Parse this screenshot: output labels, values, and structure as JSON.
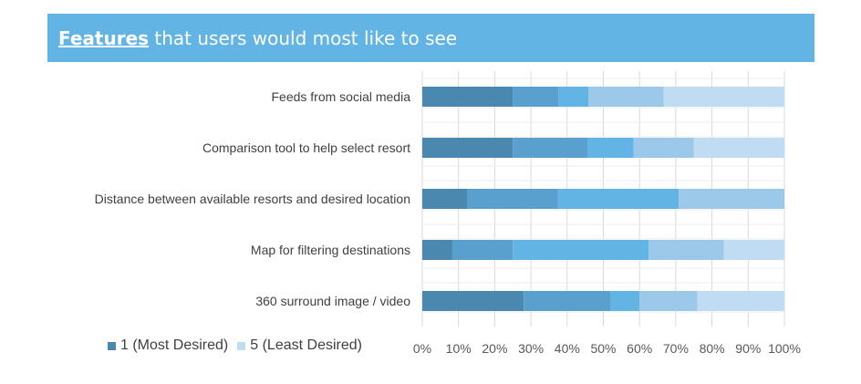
{
  "header": {
    "title_emphasis": "Features",
    "title_rest": " that users would most like to see"
  },
  "legend": [
    {
      "label": "1 (Most Desired)",
      "color": "#4a88b0"
    },
    {
      "label": "5 (Least Desired)",
      "color": "#c0dcf2"
    }
  ],
  "chart_data": {
    "type": "bar",
    "orientation": "horizontal",
    "stacked": "percent",
    "categories": [
      "Feeds from social media",
      "Comparison tool to help select resort",
      "Distance between available resorts and desired location",
      "Map for filtering destinations",
      "360 surround image / video "
    ],
    "series": [
      {
        "name": "1 (Most Desired)",
        "color": "#4a88b0",
        "values": [
          25,
          25,
          12.5,
          8.3,
          28
        ]
      },
      {
        "color": "#5aa0ce",
        "values": [
          12.5,
          20.8,
          25,
          16.7,
          24
        ]
      },
      {
        "color": "#62b4e5",
        "values": [
          8.3,
          12.5,
          33.3,
          37.5,
          8
        ]
      },
      {
        "color": "#9cc8ea",
        "values": [
          20.8,
          16.7,
          29.2,
          20.8,
          16
        ]
      },
      {
        "name": "5 (Least Desired)",
        "color": "#c0dcf2",
        "values": [
          33.3,
          25,
          0,
          16.7,
          24
        ]
      }
    ],
    "x_ticks": [
      "0%",
      "10%",
      "20%",
      "30%",
      "40%",
      "50%",
      "60%",
      "70%",
      "80%",
      "90%",
      "100%"
    ],
    "xlim": [
      0,
      100
    ],
    "grid": true,
    "legend_position": "bottom-left"
  }
}
